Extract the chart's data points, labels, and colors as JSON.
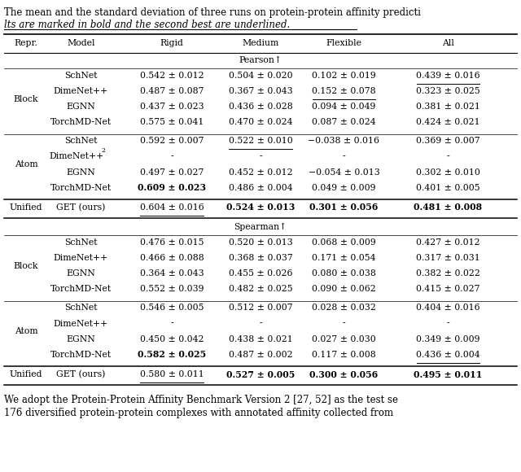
{
  "title_line1": "The mean and the standard deviation of three runs on protein-protein affinity predicti",
  "title_line2": "lts are marked in bold and the second best are underlined.",
  "footer_line1": "We adopt the Protein-Protein Affinity Benchmark Version 2 [27, 52] as the test se",
  "footer_line2": "176 diversified protein-protein complexes with annotated affinity collected from",
  "col_headers": [
    "Repr.",
    "Model",
    "Rigid",
    "Medium",
    "Flexible",
    "All"
  ],
  "pearson_section": "Pearson↑",
  "spearman_section": "Spearman↑",
  "pearson_block_rows": [
    {
      "model": "SchNet",
      "rigid": "0.542 ± 0.012",
      "medium": "0.504 ± 0.020",
      "flexible": "0.102 ± 0.019",
      "all": "0.439 ± 0.016",
      "rigid_bold": false,
      "rigid_ul": false,
      "medium_bold": false,
      "medium_ul": false,
      "flexible_bold": false,
      "flexible_ul": false,
      "all_bold": false,
      "all_ul": true
    },
    {
      "model": "DimeNet++",
      "rigid": "0.487 ± 0.087",
      "medium": "0.367 ± 0.043",
      "flexible": "0.152 ± 0.078",
      "all": "0.323 ± 0.025",
      "rigid_bold": false,
      "rigid_ul": false,
      "medium_bold": false,
      "medium_ul": false,
      "flexible_bold": false,
      "flexible_ul": true,
      "all_bold": false,
      "all_ul": false
    },
    {
      "model": "EGNN",
      "rigid": "0.437 ± 0.023",
      "medium": "0.436 ± 0.028",
      "flexible": "0.094 ± 0.049",
      "all": "0.381 ± 0.021",
      "rigid_bold": false,
      "rigid_ul": false,
      "medium_bold": false,
      "medium_ul": false,
      "flexible_bold": false,
      "flexible_ul": false,
      "all_bold": false,
      "all_ul": false
    },
    {
      "model": "TorchMD-Net",
      "rigid": "0.575 ± 0.041",
      "medium": "0.470 ± 0.024",
      "flexible": "0.087 ± 0.024",
      "all": "0.424 ± 0.021",
      "rigid_bold": false,
      "rigid_ul": false,
      "medium_bold": false,
      "medium_ul": false,
      "flexible_bold": false,
      "flexible_ul": false,
      "all_bold": false,
      "all_ul": false
    }
  ],
  "pearson_atom_rows": [
    {
      "model": "SchNet",
      "rigid": "0.592 ± 0.007",
      "medium": "0.522 ± 0.010",
      "flexible": "−0.038 ± 0.016",
      "all": "0.369 ± 0.007",
      "rigid_bold": false,
      "rigid_ul": false,
      "medium_bold": false,
      "medium_ul": true,
      "flexible_bold": false,
      "flexible_ul": false,
      "all_bold": false,
      "all_ul": false,
      "model_super": false
    },
    {
      "model": "DimeNet++",
      "model_super": true,
      "rigid": "-",
      "medium": "-",
      "flexible": "-",
      "all": "-",
      "rigid_bold": false,
      "rigid_ul": false,
      "medium_bold": false,
      "medium_ul": false,
      "flexible_bold": false,
      "flexible_ul": false,
      "all_bold": false,
      "all_ul": false
    },
    {
      "model": "EGNN",
      "rigid": "0.497 ± 0.027",
      "medium": "0.452 ± 0.012",
      "flexible": "−0.054 ± 0.013",
      "all": "0.302 ± 0.010",
      "rigid_bold": false,
      "rigid_ul": false,
      "medium_bold": false,
      "medium_ul": false,
      "flexible_bold": false,
      "flexible_ul": false,
      "all_bold": false,
      "all_ul": false,
      "model_super": false
    },
    {
      "model": "TorchMD-Net",
      "rigid": "0.609 ± 0.023",
      "medium": "0.486 ± 0.004",
      "flexible": "0.049 ± 0.009",
      "all": "0.401 ± 0.005",
      "rigid_bold": true,
      "rigid_ul": false,
      "medium_bold": false,
      "medium_ul": false,
      "flexible_bold": false,
      "flexible_ul": false,
      "all_bold": false,
      "all_ul": false,
      "model_super": false
    }
  ],
  "pearson_unified_row": {
    "model": "GET (ours)",
    "rigid": "0.604 ± 0.016",
    "medium": "0.524 ± 0.013",
    "flexible": "0.301 ± 0.056",
    "all": "0.481 ± 0.008",
    "rigid_bold": false,
    "rigid_ul": true,
    "medium_bold": true,
    "medium_ul": false,
    "flexible_bold": true,
    "flexible_ul": false,
    "all_bold": true,
    "all_ul": false
  },
  "spearman_block_rows": [
    {
      "model": "SchNet",
      "rigid": "0.476 ± 0.015",
      "medium": "0.520 ± 0.013",
      "flexible": "0.068 ± 0.009",
      "all": "0.427 ± 0.012",
      "rigid_bold": false,
      "rigid_ul": false,
      "medium_bold": false,
      "medium_ul": false,
      "flexible_bold": false,
      "flexible_ul": false,
      "all_bold": false,
      "all_ul": false
    },
    {
      "model": "DimeNet++",
      "rigid": "0.466 ± 0.088",
      "medium": "0.368 ± 0.037",
      "flexible": "0.171 ± 0.054",
      "all": "0.317 ± 0.031",
      "rigid_bold": false,
      "rigid_ul": false,
      "medium_bold": false,
      "medium_ul": false,
      "flexible_bold": false,
      "flexible_ul": false,
      "all_bold": false,
      "all_ul": false
    },
    {
      "model": "EGNN",
      "rigid": "0.364 ± 0.043",
      "medium": "0.455 ± 0.026",
      "flexible": "0.080 ± 0.038",
      "all": "0.382 ± 0.022",
      "rigid_bold": false,
      "rigid_ul": false,
      "medium_bold": false,
      "medium_ul": false,
      "flexible_bold": false,
      "flexible_ul": false,
      "all_bold": false,
      "all_ul": false
    },
    {
      "model": "TorchMD-Net",
      "rigid": "0.552 ± 0.039",
      "medium": "0.482 ± 0.025",
      "flexible": "0.090 ± 0.062",
      "all": "0.415 ± 0.027",
      "rigid_bold": false,
      "rigid_ul": false,
      "medium_bold": false,
      "medium_ul": false,
      "flexible_bold": false,
      "flexible_ul": false,
      "all_bold": false,
      "all_ul": false
    }
  ],
  "spearman_atom_rows": [
    {
      "model": "SchNet",
      "rigid": "0.546 ± 0.005",
      "medium": "0.512 ± 0.007",
      "flexible": "0.028 ± 0.032",
      "all": "0.404 ± 0.016",
      "rigid_bold": false,
      "rigid_ul": false,
      "medium_bold": false,
      "medium_ul": false,
      "flexible_bold": false,
      "flexible_ul": false,
      "all_bold": false,
      "all_ul": false
    },
    {
      "model": "DimeNet++",
      "rigid": "-",
      "medium": "-",
      "flexible": "-",
      "all": "-",
      "rigid_bold": false,
      "rigid_ul": false,
      "medium_bold": false,
      "medium_ul": false,
      "flexible_bold": false,
      "flexible_ul": false,
      "all_bold": false,
      "all_ul": false
    },
    {
      "model": "EGNN",
      "rigid": "0.450 ± 0.042",
      "medium": "0.438 ± 0.021",
      "flexible": "0.027 ± 0.030",
      "all": "0.349 ± 0.009",
      "rigid_bold": false,
      "rigid_ul": false,
      "medium_bold": false,
      "medium_ul": false,
      "flexible_bold": false,
      "flexible_ul": false,
      "all_bold": false,
      "all_ul": false
    },
    {
      "model": "TorchMD-Net",
      "rigid": "0.582 ± 0.025",
      "medium": "0.487 ± 0.002",
      "flexible": "0.117 ± 0.008",
      "all": "0.436 ± 0.004",
      "rigid_bold": true,
      "rigid_ul": false,
      "medium_bold": false,
      "medium_ul": false,
      "flexible_bold": false,
      "flexible_ul": false,
      "all_bold": false,
      "all_ul": true
    }
  ],
  "spearman_unified_row": {
    "model": "GET (ours)",
    "rigid": "0.580 ± 0.011",
    "medium": "0.527 ± 0.005",
    "flexible": "0.300 ± 0.056",
    "all": "0.495 ± 0.011",
    "rigid_bold": false,
    "rigid_ul": true,
    "medium_bold": true,
    "medium_ul": false,
    "flexible_bold": true,
    "flexible_ul": false,
    "all_bold": true,
    "all_ul": false
  },
  "bg_color": "#ffffff",
  "text_color": "#000000",
  "font_size": 7.8,
  "title_font_size": 8.5,
  "footer_font_size": 8.5
}
